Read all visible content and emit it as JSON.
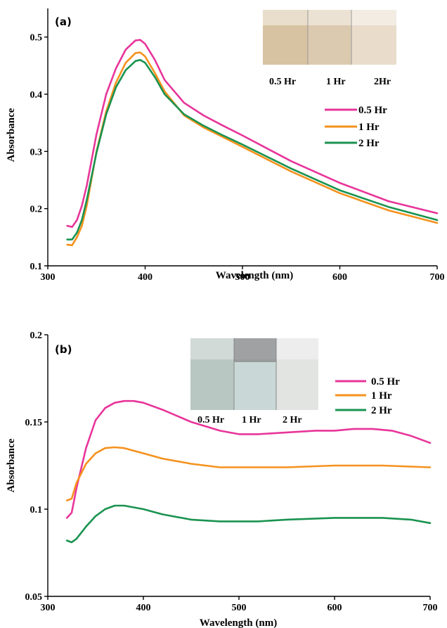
{
  "chart_data": [
    {
      "type": "line",
      "panel_label": "(a)",
      "xlabel": "Wavelength (nm)",
      "ylabel": "Absorbance",
      "xlim": [
        300,
        700
      ],
      "ylim": [
        0.1,
        0.55
      ],
      "xticks": [
        "300",
        "400",
        "500",
        "600",
        "700"
      ],
      "yticks": [
        "0.1",
        "0.2",
        "0.3",
        "0.4",
        "0.5"
      ],
      "legend_position": "right",
      "inset_photo_labels": [
        "0.5 Hr",
        "1 Hr",
        "2Hr"
      ],
      "series": [
        {
          "name": "0.5 Hr",
          "color": "#e8359a",
          "x": [
            320,
            325,
            330,
            335,
            340,
            350,
            360,
            370,
            380,
            390,
            395,
            400,
            410,
            420,
            440,
            460,
            480,
            500,
            550,
            600,
            650,
            700
          ],
          "y": [
            0.17,
            0.168,
            0.18,
            0.205,
            0.24,
            0.33,
            0.4,
            0.445,
            0.478,
            0.494,
            0.495,
            0.488,
            0.46,
            0.425,
            0.385,
            0.363,
            0.345,
            0.328,
            0.283,
            0.245,
            0.213,
            0.192
          ]
        },
        {
          "name": "1 Hr",
          "color": "#f5921e",
          "x": [
            320,
            325,
            330,
            335,
            340,
            350,
            360,
            370,
            380,
            390,
            395,
            400,
            410,
            420,
            440,
            460,
            480,
            500,
            550,
            600,
            650,
            700
          ],
          "y": [
            0.137,
            0.136,
            0.15,
            0.17,
            0.205,
            0.3,
            0.37,
            0.42,
            0.455,
            0.472,
            0.473,
            0.466,
            0.437,
            0.405,
            0.363,
            0.342,
            0.325,
            0.308,
            0.265,
            0.227,
            0.197,
            0.175
          ]
        },
        {
          "name": "2 Hr",
          "color": "#1a9350",
          "x": [
            320,
            325,
            330,
            335,
            340,
            350,
            360,
            370,
            380,
            390,
            395,
            400,
            410,
            420,
            440,
            460,
            480,
            500,
            550,
            600,
            650,
            700
          ],
          "y": [
            0.146,
            0.146,
            0.158,
            0.18,
            0.215,
            0.298,
            0.365,
            0.412,
            0.442,
            0.458,
            0.46,
            0.455,
            0.43,
            0.4,
            0.365,
            0.345,
            0.328,
            0.312,
            0.27,
            0.232,
            0.203,
            0.18
          ]
        }
      ]
    },
    {
      "type": "line",
      "panel_label": "(b)",
      "xlabel": "Wavelength (nm)",
      "ylabel": "Absorbance",
      "xlim": [
        300,
        700
      ],
      "ylim": [
        0.05,
        0.2
      ],
      "xticks": [
        "300",
        "400",
        "500",
        "600",
        "700"
      ],
      "yticks": [
        "0.05",
        "0.1",
        "0.15",
        "0.2"
      ],
      "legend_position": "right",
      "inset_photo_labels": [
        "0.5 Hr",
        "1 Hr",
        "2 Hr"
      ],
      "series": [
        {
          "name": "0.5 Hr",
          "color": "#e8359a",
          "x": [
            320,
            325,
            330,
            340,
            350,
            360,
            370,
            380,
            390,
            400,
            420,
            450,
            480,
            500,
            520,
            550,
            580,
            600,
            620,
            640,
            660,
            680,
            700
          ],
          "y": [
            0.095,
            0.098,
            0.112,
            0.135,
            0.151,
            0.158,
            0.161,
            0.162,
            0.162,
            0.161,
            0.157,
            0.15,
            0.145,
            0.143,
            0.143,
            0.144,
            0.145,
            0.145,
            0.146,
            0.146,
            0.145,
            0.142,
            0.138
          ]
        },
        {
          "name": "1 Hr",
          "color": "#f5921e",
          "x": [
            320,
            325,
            330,
            340,
            350,
            360,
            370,
            380,
            400,
            420,
            450,
            480,
            500,
            550,
            600,
            650,
            700
          ],
          "y": [
            0.105,
            0.106,
            0.115,
            0.126,
            0.132,
            0.135,
            0.1355,
            0.135,
            0.132,
            0.129,
            0.126,
            0.124,
            0.124,
            0.124,
            0.125,
            0.125,
            0.124
          ]
        },
        {
          "name": "2 Hr",
          "color": "#1a9350",
          "x": [
            320,
            325,
            330,
            340,
            350,
            360,
            370,
            380,
            400,
            420,
            450,
            480,
            500,
            520,
            550,
            600,
            650,
            680,
            700
          ],
          "y": [
            0.082,
            0.081,
            0.083,
            0.09,
            0.096,
            0.1,
            0.102,
            0.102,
            0.1,
            0.097,
            0.094,
            0.093,
            0.093,
            0.093,
            0.094,
            0.095,
            0.095,
            0.094,
            0.092
          ]
        }
      ]
    }
  ],
  "insets": {
    "a": {
      "vials": [
        "#d7c3a1",
        "#dccab0",
        "#e9dccb"
      ]
    },
    "b": {
      "vials": [
        "#b9c7c2",
        "#c9d8d6",
        "#e2e4e2"
      ]
    }
  }
}
